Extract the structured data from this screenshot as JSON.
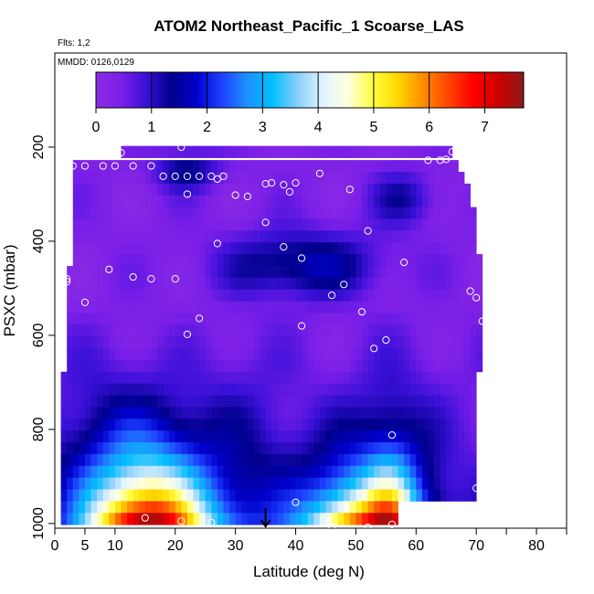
{
  "chart_data": {
    "type": "heatmap",
    "title": "ATOM2 Northeast_Pacific_1 Scoarse_LAS",
    "subtitle_flights": "Flts: 1,2",
    "subtitle_dates": "MMDD: 0126,0129",
    "xlabel": "Latitude (deg N)",
    "ylabel": "PSXC (mbar)",
    "xlim": [
      0,
      85
    ],
    "ylim": [
      1010,
      0
    ],
    "x_ticks": [
      0,
      5,
      10,
      20,
      30,
      40,
      50,
      60,
      70,
      80
    ],
    "x_minor_ticks": [
      75,
      85
    ],
    "y_ticks": [
      200,
      400,
      600,
      800,
      1000
    ],
    "colorbar": {
      "range": [
        0,
        7.7
      ],
      "ticks": [
        0,
        1,
        2,
        3,
        4,
        5,
        6,
        7
      ],
      "colors": [
        "#8a2be2",
        "#7b1fe8",
        "#3a10d8",
        "#00008b",
        "#0000cd",
        "#1e40ff",
        "#1e90ff",
        "#00bfff",
        "#87cefa",
        "#e0f4ff",
        "#ffffe0",
        "#ffff40",
        "#ffd700",
        "#ff8c00",
        "#ff4500",
        "#ff0000",
        "#cd0000",
        "#8b1a1a"
      ]
    },
    "marker_latitude": 35,
    "pressure_levels": [
      210,
      240,
      265,
      290,
      315,
      340,
      365,
      390,
      415,
      440,
      465,
      490,
      515,
      540,
      565,
      590,
      615,
      640,
      665,
      690,
      715,
      740,
      765,
      790,
      815,
      840,
      865,
      890,
      915,
      940,
      965,
      990
    ],
    "row_lat_ranges": [
      [
        11,
        66
      ],
      [
        3,
        67
      ],
      [
        3,
        68
      ],
      [
        3,
        69
      ],
      [
        3,
        69
      ],
      [
        3,
        70
      ],
      [
        3,
        70
      ],
      [
        3,
        70
      ],
      [
        3,
        70
      ],
      [
        3,
        71
      ],
      [
        2,
        71
      ],
      [
        2,
        71
      ],
      [
        2,
        71
      ],
      [
        2,
        71
      ],
      [
        2,
        71
      ],
      [
        2,
        71
      ],
      [
        2,
        71
      ],
      [
        2,
        71
      ],
      [
        2,
        71
      ],
      [
        1,
        70
      ],
      [
        1,
        70
      ],
      [
        1,
        70
      ],
      [
        1,
        70
      ],
      [
        1,
        70
      ],
      [
        1,
        70
      ],
      [
        1,
        70
      ],
      [
        1,
        70
      ],
      [
        1,
        70
      ],
      [
        1,
        70
      ],
      [
        1,
        70
      ],
      [
        1,
        57
      ],
      [
        1,
        57
      ]
    ],
    "samples": [
      [
        11,
        212
      ],
      [
        21,
        200
      ],
      [
        30,
        182
      ],
      [
        62,
        228
      ],
      [
        65,
        226
      ],
      [
        66,
        210
      ],
      [
        3,
        240
      ],
      [
        5,
        240
      ],
      [
        8,
        240
      ],
      [
        10,
        240
      ],
      [
        13,
        240
      ],
      [
        16,
        240
      ],
      [
        18,
        262
      ],
      [
        20,
        262
      ],
      [
        22,
        262
      ],
      [
        24,
        262
      ],
      [
        26,
        262
      ],
      [
        28,
        262
      ],
      [
        22,
        300
      ],
      [
        27,
        268
      ],
      [
        30,
        302
      ],
      [
        32,
        305
      ],
      [
        35,
        278
      ],
      [
        36,
        276
      ],
      [
        38,
        280
      ],
      [
        39,
        295
      ],
      [
        40,
        276
      ],
      [
        44,
        256
      ],
      [
        49,
        290
      ],
      [
        64,
        228
      ],
      [
        35,
        360
      ],
      [
        38,
        412
      ],
      [
        41,
        436
      ],
      [
        27,
        405
      ],
      [
        52,
        378
      ],
      [
        58,
        445
      ],
      [
        2,
        480
      ],
      [
        2,
        486
      ],
      [
        9,
        460
      ],
      [
        13,
        476
      ],
      [
        16,
        480
      ],
      [
        20,
        480
      ],
      [
        46,
        515
      ],
      [
        48,
        492
      ],
      [
        51,
        550
      ],
      [
        55,
        610
      ],
      [
        53,
        628
      ],
      [
        69,
        506
      ],
      [
        70,
        520
      ],
      [
        71,
        570
      ],
      [
        5,
        530
      ],
      [
        24,
        564
      ],
      [
        22,
        598
      ],
      [
        41,
        580
      ],
      [
        56,
        812
      ],
      [
        70,
        925
      ],
      [
        40,
        955
      ],
      [
        7,
        990
      ],
      [
        15,
        988
      ],
      [
        21,
        995
      ],
      [
        26,
        998
      ],
      [
        46,
        1008
      ],
      [
        52,
        1008
      ],
      [
        56,
        1002
      ]
    ],
    "field_description": "columnar aerosol-like field: low values aloft (~0-1), increasing toward surface with peaks near 15-20N and 50-58N"
  }
}
